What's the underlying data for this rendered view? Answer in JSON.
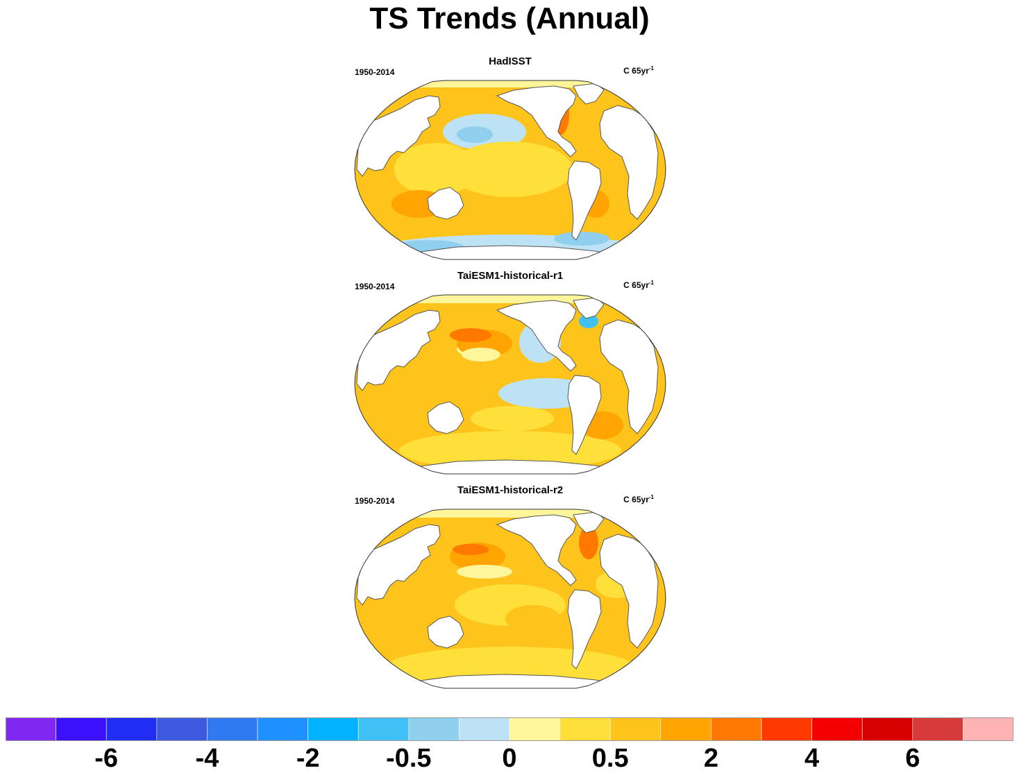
{
  "title": "TS Trends (Annual)",
  "panels": [
    {
      "title": "HadISST",
      "period": "1950-2014",
      "units_main": "C 65yr",
      "units_sup": "-1"
    },
    {
      "title": "TaiESM1-historical-r1",
      "period": "1950-2014",
      "units_main": "C 65yr",
      "units_sup": "-1"
    },
    {
      "title": "TaiESM1-historical-r2",
      "period": "1950-2014",
      "units_main": "C 65yr",
      "units_sup": "-1"
    }
  ],
  "colorbar": {
    "colors": [
      "#8027f2",
      "#3b10fc",
      "#1f2ef2",
      "#3d5ae0",
      "#2f7af0",
      "#1e90ff",
      "#00b2ff",
      "#3fc1f5",
      "#90d0ee",
      "#bde2f5",
      "#fff59a",
      "#ffe03a",
      "#ffc41c",
      "#ffa400",
      "#ff7800",
      "#ff3a00",
      "#f50000",
      "#d70000",
      "#d63a3a",
      "#ffb3b3"
    ],
    "labels": [
      {
        "text": "-6",
        "boundary": 2
      },
      {
        "text": "-4",
        "boundary": 4
      },
      {
        "text": "-2",
        "boundary": 6
      },
      {
        "text": "-0.5",
        "boundary": 8
      },
      {
        "text": "0",
        "boundary": 10
      },
      {
        "text": "0.5",
        "boundary": 12
      },
      {
        "text": "2",
        "boundary": 14
      },
      {
        "text": "4",
        "boundary": 16
      },
      {
        "text": "6",
        "boundary": 18
      }
    ]
  }
}
